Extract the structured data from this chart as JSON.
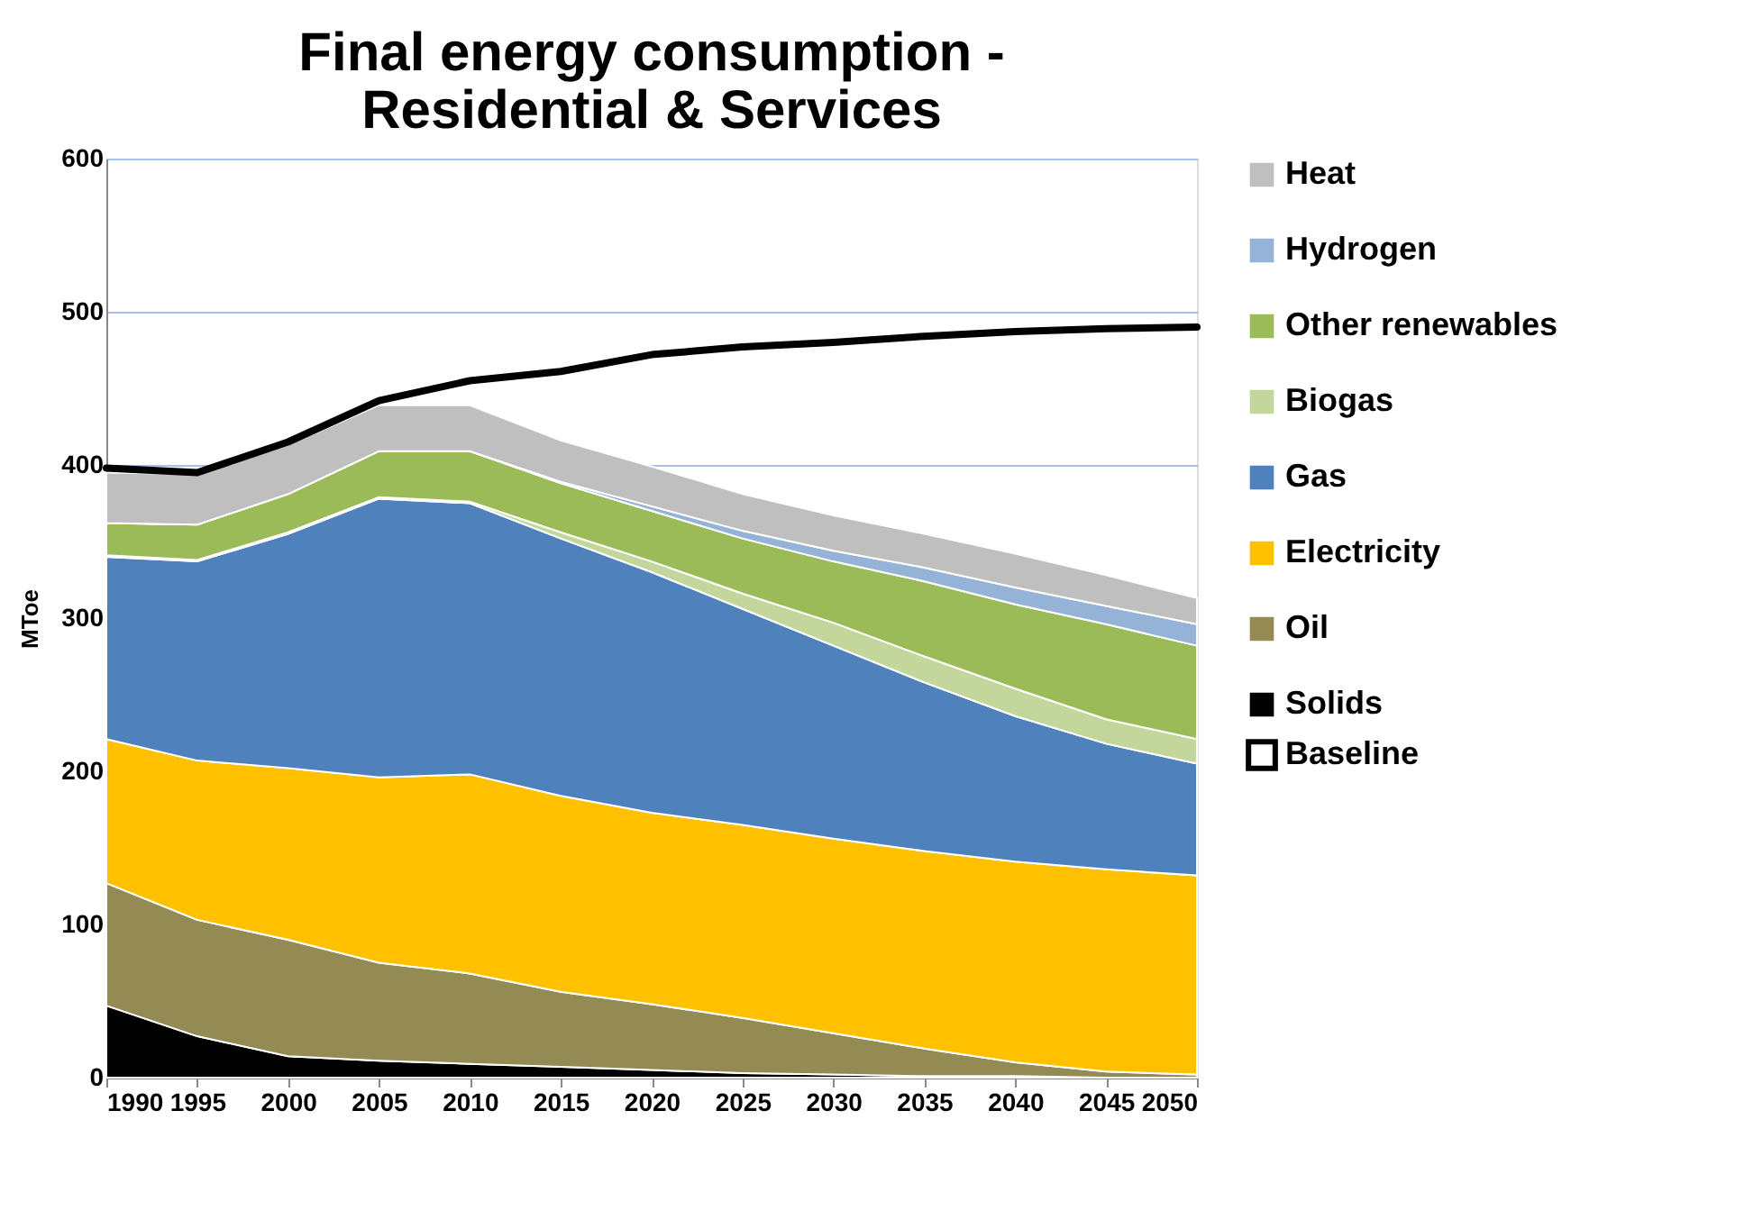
{
  "chart_data": {
    "type": "area",
    "title": "Final energy consumption -\nResidential & Services",
    "ylabel": "MToe",
    "stacked": true,
    "grid": "y",
    "legend": "right",
    "x": [
      1990,
      1995,
      2000,
      2005,
      2010,
      2015,
      2020,
      2025,
      2030,
      2035,
      2040,
      2045,
      2050
    ],
    "xlim": [
      1990,
      2050
    ],
    "xticks": [
      1990,
      1995,
      2000,
      2005,
      2010,
      2015,
      2020,
      2025,
      2030,
      2035,
      2040,
      2045,
      2050
    ],
    "ylim": [
      0,
      600
    ],
    "yticks": [
      0,
      100,
      200,
      300,
      400,
      500,
      600
    ],
    "series": [
      {
        "name": "Solids",
        "color": "#000000",
        "values": [
          47,
          27,
          14,
          11,
          9,
          7,
          5,
          3,
          2,
          1,
          1,
          0,
          0
        ]
      },
      {
        "name": "Oil",
        "color": "#948a54",
        "values": [
          80,
          76,
          76,
          64,
          59,
          49,
          43,
          36,
          27,
          18,
          9,
          4,
          2
        ]
      },
      {
        "name": "Electricity",
        "color": "#ffc000",
        "values": [
          94,
          104,
          112,
          121,
          130,
          128,
          125,
          126,
          127,
          129,
          131,
          132,
          130
        ]
      },
      {
        "name": "Gas",
        "color": "#4f81bd",
        "values": [
          119,
          130,
          153,
          182,
          177,
          168,
          157,
          141,
          126,
          110,
          95,
          82,
          73
        ]
      },
      {
        "name": "Biogas",
        "color": "#c3d69b",
        "values": [
          1,
          1,
          1,
          1,
          1,
          4,
          7,
          10,
          15,
          17,
          18,
          16,
          16
        ]
      },
      {
        "name": "Other renewables",
        "color": "#9bbb59",
        "values": [
          21,
          23,
          25,
          30,
          33,
          32,
          33,
          36,
          40,
          49,
          55,
          62,
          61
        ]
      },
      {
        "name": "Hydrogen",
        "color": "#95b3d7",
        "values": [
          0,
          0,
          0,
          0,
          0,
          1,
          3,
          5,
          7,
          9,
          11,
          12,
          14
        ]
      },
      {
        "name": "Heat",
        "color": "#bfbfbf",
        "values": [
          33,
          33,
          32,
          30,
          30,
          27,
          26,
          24,
          23,
          22,
          22,
          20,
          17
        ]
      },
      {
        "name": "Baseline",
        "color": "#000000",
        "type": "line",
        "values": [
          398,
          395,
          415,
          442,
          455,
          461,
          472,
          477,
          480,
          484,
          487,
          489,
          490
        ]
      }
    ]
  }
}
